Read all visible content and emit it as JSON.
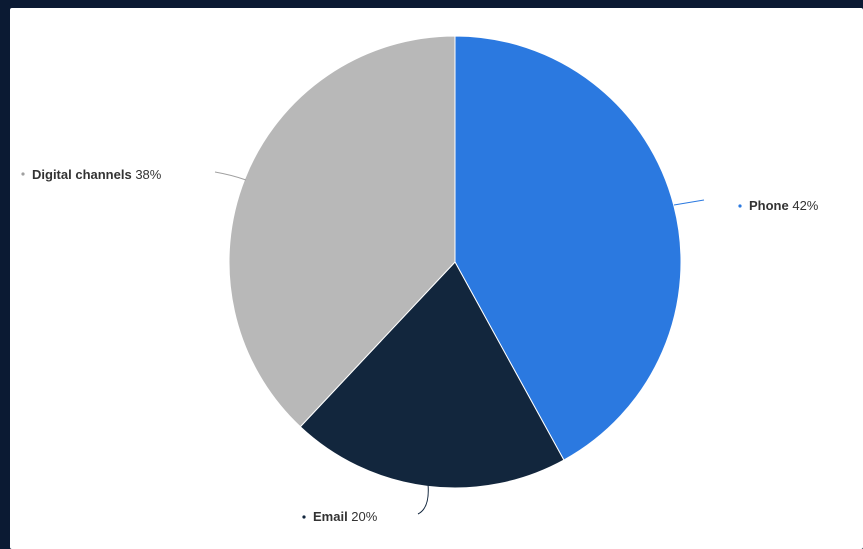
{
  "chart_data": {
    "type": "pie",
    "title": "",
    "slices": [
      {
        "label": "Phone",
        "value": 42,
        "value_label": "42%",
        "color": "#2b79e0"
      },
      {
        "label": "Email",
        "value": 20,
        "value_label": "20%",
        "color": "#12263d"
      },
      {
        "label": "Digital channels",
        "value": 38,
        "value_label": "38%",
        "color": "#b8b8b8"
      }
    ],
    "legend": "none",
    "data_labels": "outside with connector lines"
  },
  "colors": {
    "page_background": "#0b1a33",
    "card_background": "#ffffff"
  }
}
